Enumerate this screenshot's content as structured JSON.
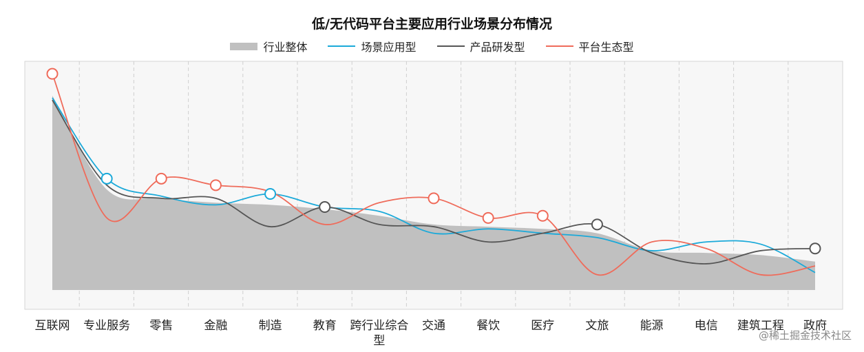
{
  "chart_data": {
    "type": "line",
    "title": "低/无代码平台主要应用行业场景分布情况",
    "categories": [
      "互联网",
      "专业服务",
      "零售",
      "金融",
      "制造",
      "教育",
      "跨行业综合型",
      "交通",
      "餐饮",
      "医疗",
      "文旅",
      "能源",
      "电信",
      "建筑工程",
      "政府"
    ],
    "ylim": [
      0,
      100
    ],
    "grid": "vertical dashed",
    "legend_position": "top",
    "series": [
      {
        "name": "行业整体",
        "type": "area",
        "color": "#c0c0c0",
        "values": [
          89,
          46,
          42,
          40,
          39,
          37,
          34,
          30,
          29,
          28,
          26,
          18,
          17,
          16,
          13
        ]
      },
      {
        "name": "场景应用型",
        "type": "line",
        "color": "#1aa9d9",
        "values": [
          88,
          51,
          43,
          39,
          44,
          38,
          36,
          26,
          28,
          26,
          24,
          18,
          22,
          21,
          8
        ]
      },
      {
        "name": "产品研发型",
        "type": "line",
        "color": "#555555",
        "values": [
          87,
          48,
          42,
          42,
          29,
          38,
          30,
          29,
          22,
          26,
          30,
          17,
          12,
          18,
          19
        ]
      },
      {
        "name": "平台生态型",
        "type": "line",
        "color": "#ef6b5a",
        "values": [
          99,
          33,
          51,
          48,
          45,
          30,
          40,
          42,
          33,
          34,
          7,
          22,
          19,
          7,
          11
        ]
      }
    ],
    "markers": [
      {
        "series": "平台生态型",
        "index": 0
      },
      {
        "series": "场景应用型",
        "index": 1
      },
      {
        "series": "平台生态型",
        "index": 2
      },
      {
        "series": "平台生态型",
        "index": 3
      },
      {
        "series": "场景应用型",
        "index": 4
      },
      {
        "series": "产品研发型",
        "index": 5
      },
      {
        "series": "平台生态型",
        "index": 7
      },
      {
        "series": "平台生态型",
        "index": 8
      },
      {
        "series": "平台生态型",
        "index": 9
      },
      {
        "series": "产品研发型",
        "index": 10
      },
      {
        "series": "产品研发型",
        "index": 14
      }
    ]
  },
  "watermark": "@稀土掘金技术社区"
}
